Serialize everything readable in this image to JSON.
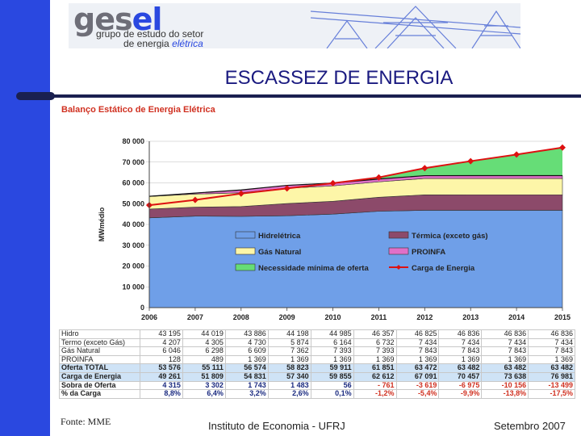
{
  "logo": {
    "name_part1": "ges",
    "name_part2": "el",
    "line1": "grupo de estudo do setor",
    "line2a": "de energia",
    "line2b": "elétrica"
  },
  "slide_title": "ESCASSEZ DE ENERGIA",
  "colors": {
    "left_bar": "#2a48e0",
    "hidreletrica": "#6f9fe8",
    "termica": "#8c4a6a",
    "gas": "#fdf6a8",
    "proinfa": "#e070c8",
    "necessidade": "#66dd77",
    "carga": "#dd1111"
  },
  "chart_data": {
    "type": "area",
    "title": "Balanço Estático de Energia Elétrica",
    "ylabel": "MWmédio",
    "ylim": [
      0,
      80000
    ],
    "y_ticks": [
      "0",
      "10 000",
      "20 000",
      "30 000",
      "40 000",
      "50 000",
      "60 000",
      "70 000",
      "80 000"
    ],
    "x": [
      "2006",
      "2007",
      "2008",
      "2009",
      "2010",
      "2011",
      "2012",
      "2013",
      "2014",
      "2015"
    ],
    "series": [
      {
        "name": "Hidrelétrica",
        "values": [
          43195,
          44019,
          43886,
          44198,
          44985,
          46357,
          46825,
          46836,
          46836,
          46836
        ]
      },
      {
        "name": "Térmica (exceto gás)",
        "values": [
          4207,
          4305,
          4730,
          5874,
          6164,
          6732,
          7434,
          7434,
          7434,
          7434
        ]
      },
      {
        "name": "Gás Natural",
        "values": [
          6046,
          6298,
          6609,
          7362,
          7393,
          7393,
          7843,
          7843,
          7843,
          7843
        ]
      },
      {
        "name": "PROINFA",
        "values": [
          128,
          489,
          1369,
          1369,
          1369,
          1369,
          1369,
          1369,
          1369,
          1369
        ]
      },
      {
        "name": "Necessidade mínima de oferta",
        "values": [
          0,
          0,
          0,
          0,
          0,
          761,
          3619,
          6975,
          10156,
          13499
        ]
      },
      {
        "name": "Carga de Energia",
        "values": [
          49261,
          51809,
          54831,
          57340,
          59855,
          62612,
          67091,
          70457,
          73638,
          76981
        ]
      }
    ],
    "legend": [
      "Hidrelétrica",
      "Térmica (exceto gás)",
      "Gás Natural",
      "PROINFA",
      "Necessidade mínima de oferta",
      "Carga de Energia"
    ],
    "table": [
      {
        "label": "Hidro",
        "style": "",
        "values": [
          "43 195",
          "44 019",
          "43 886",
          "44 198",
          "44 985",
          "46 357",
          "46 825",
          "46 836",
          "46 836",
          "46 836"
        ]
      },
      {
        "label": "Termo (exceto Gás)",
        "style": "",
        "values": [
          "4 207",
          "4 305",
          "4 730",
          "5 874",
          "6 164",
          "6 732",
          "7 434",
          "7 434",
          "7 434",
          "7 434"
        ]
      },
      {
        "label": "Gás Natural",
        "style": "",
        "values": [
          "6 046",
          "6 298",
          "6 609",
          "7 362",
          "7 393",
          "7 393",
          "7 843",
          "7 843",
          "7 843",
          "7 843"
        ]
      },
      {
        "label": "PROINFA",
        "style": "",
        "values": [
          "128",
          "489",
          "1 369",
          "1 369",
          "1 369",
          "1 369",
          "1 369",
          "1 369",
          "1 369",
          "1 369"
        ]
      },
      {
        "label": "Oferta TOTAL",
        "style": "hl",
        "values": [
          "53 576",
          "55 111",
          "56 574",
          "58 823",
          "59 911",
          "61 851",
          "63 472",
          "63 482",
          "63 482",
          "63 482"
        ]
      },
      {
        "label": "Carga de Energia",
        "style": "hl",
        "values": [
          "49 261",
          "51 809",
          "54 831",
          "57 340",
          "59 855",
          "62 612",
          "67 091",
          "70 457",
          "73 638",
          "76 981"
        ]
      },
      {
        "label": "Sobra de Oferta",
        "style": "neg",
        "values": [
          "4 315",
          "3 302",
          "1 743",
          "1 483",
          "56",
          "- 761",
          "-3 619",
          "-6 975",
          "-10 156",
          "-13 499"
        ]
      },
      {
        "label": "% da Carga",
        "style": "neg",
        "values": [
          "8,8%",
          "6,4%",
          "3,2%",
          "2,6%",
          "0,1%",
          "-1,2%",
          "-5,4%",
          "-9,9%",
          "-13,8%",
          "-17,5%"
        ]
      }
    ]
  },
  "footer": {
    "source": "Fonte: MME",
    "institution": "Instituto de Economia - UFRJ",
    "date": "Setembro 2007"
  }
}
